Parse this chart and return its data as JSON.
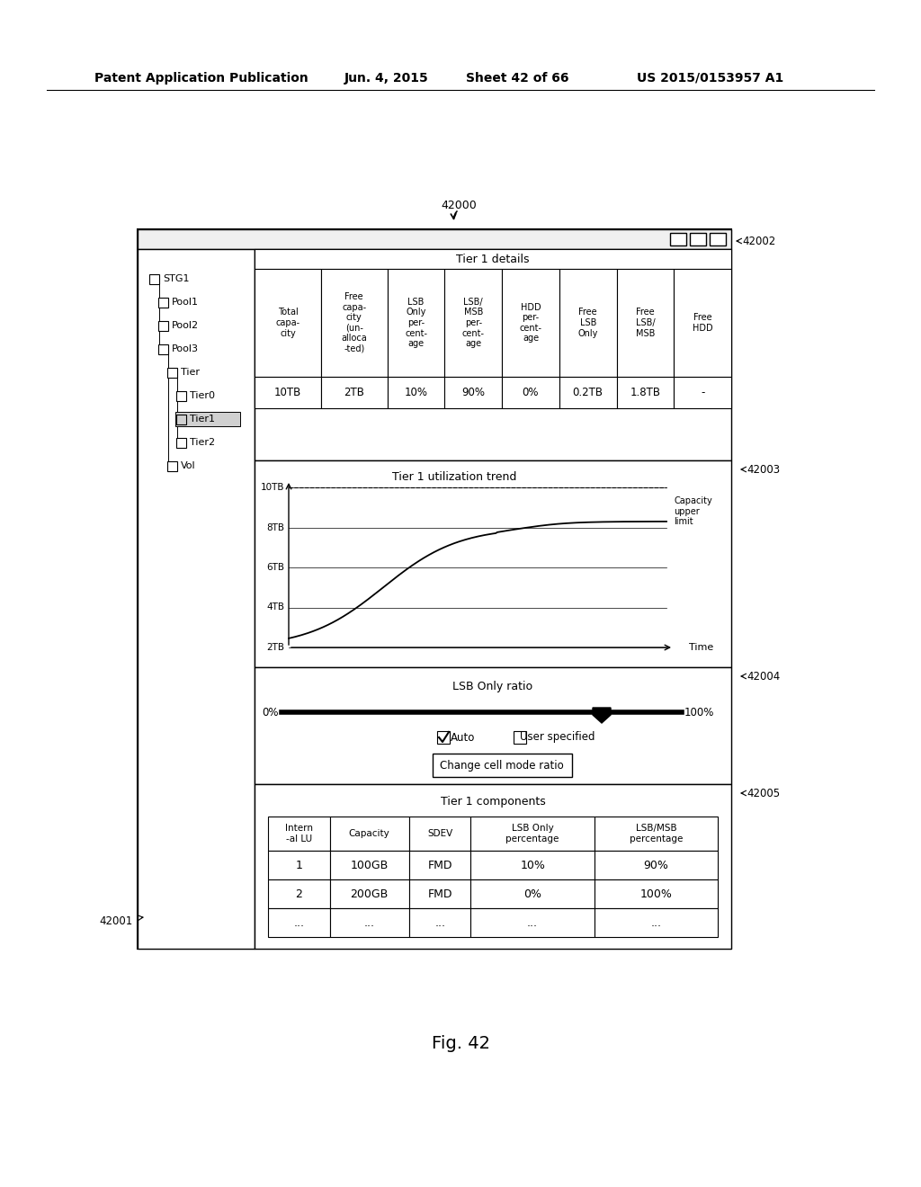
{
  "header_text": "Patent Application Publication",
  "header_date": "Jun. 4, 2015",
  "header_sheet": "Sheet 42 of 66",
  "header_patent": "US 2015/0153957 A1",
  "figure_label": "Fig. 42",
  "label_42000": "42000",
  "label_42001": "42001",
  "label_42002": "42002",
  "label_42003": "42003",
  "label_42004": "42004",
  "label_42005": "42005",
  "tier1_details_header": "Tier 1 details",
  "tier1_table_headers": [
    "Total\ncapa-\ncity",
    "Free\ncapa-\ncity\n(un-\nalloca\n-ted)",
    "LSB\nOnly\nper-\ncent-\nage",
    "LSB/\nMSB\nper-\ncent-\nage",
    "HDD\nper-\ncent-\nage",
    "Free\nLSB\nOnly",
    "Free\nLSB/\nMSB",
    "Free\nHDD"
  ],
  "tier1_table_data": [
    "10TB",
    "2TB",
    "10%",
    "90%",
    "0%",
    "0.2TB",
    "1.8TB",
    "-"
  ],
  "chart_title": "Tier 1 utilization trend",
  "chart_ylabel": [
    "10TB",
    "8TB",
    "6TB",
    "4TB",
    "2TB"
  ],
  "chart_xlabel": "Time",
  "chart_note": "Capacity\nupper\nlimit",
  "slider_title": "LSB Only ratio",
  "slider_left": "0%",
  "slider_right": "100%",
  "checkbox_auto": "Auto",
  "checkbox_user": "User specified",
  "button_text": "Change cell mode ratio",
  "components_title": "Tier 1 components",
  "components_headers": [
    "Intern\n-al LU",
    "Capacity",
    "SDEV",
    "LSB Only\npercentage",
    "LSB/MSB\npercentage"
  ],
  "components_data": [
    [
      "1",
      "100GB",
      "FMD",
      "10%",
      "90%"
    ],
    [
      "2",
      "200GB",
      "FMD",
      "0%",
      "100%"
    ],
    [
      "...",
      "...",
      "...",
      "...",
      "..."
    ]
  ],
  "tree_items": [
    {
      "label": "STG1",
      "indent": 0,
      "selected": false
    },
    {
      "label": "Pool1",
      "indent": 1,
      "selected": false
    },
    {
      "label": "Pool2",
      "indent": 1,
      "selected": false
    },
    {
      "label": "Pool3",
      "indent": 1,
      "selected": false
    },
    {
      "label": "Tier",
      "indent": 2,
      "selected": false
    },
    {
      "label": "Tier0",
      "indent": 3,
      "selected": false
    },
    {
      "label": "Tier1",
      "indent": 3,
      "selected": true
    },
    {
      "label": "Tier2",
      "indent": 3,
      "selected": false
    },
    {
      "label": "Vol",
      "indent": 2,
      "selected": false
    }
  ]
}
